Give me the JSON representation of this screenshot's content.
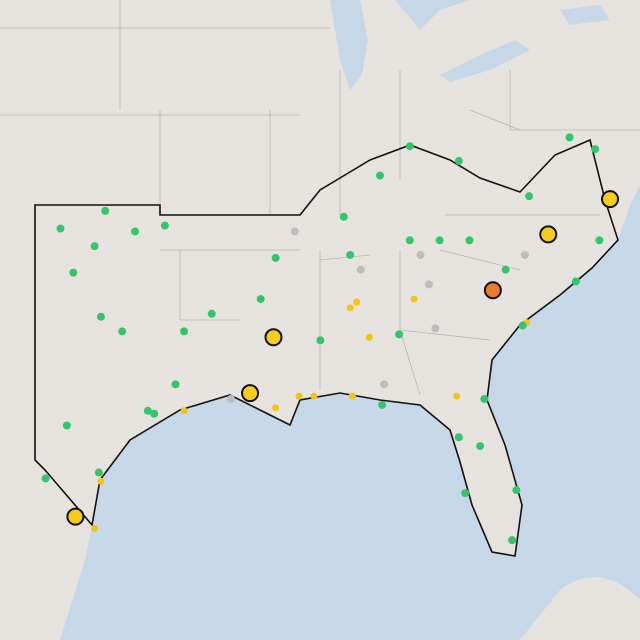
{
  "marker_styles": {
    "green": {
      "color": "#34c56b",
      "radius": 4
    },
    "gray": {
      "color": "#bdbdbd",
      "radius": 4
    },
    "yellow": {
      "color": "#f2c318",
      "radius": 3.5
    },
    "yellow-large": {
      "color": "#f5cc1c",
      "radius": 8
    },
    "orange-large": {
      "color": "#e67e2e",
      "radius": 8
    }
  },
  "points": [
    {
      "lon": -101.8,
      "lat": 35.7,
      "style": "green"
    },
    {
      "lon": -99.7,
      "lat": 36.3,
      "style": "green"
    },
    {
      "lon": -100.2,
      "lat": 35.1,
      "style": "green"
    },
    {
      "lon": -98.3,
      "lat": 35.6,
      "style": "green"
    },
    {
      "lon": -96.9,
      "lat": 35.8,
      "style": "green"
    },
    {
      "lon": -101.2,
      "lat": 34.2,
      "style": "green"
    },
    {
      "lon": -99.9,
      "lat": 32.7,
      "style": "green"
    },
    {
      "lon": -98.9,
      "lat": 32.2,
      "style": "green"
    },
    {
      "lon": -101.5,
      "lat": 29.0,
      "style": "green"
    },
    {
      "lon": -97.7,
      "lat": 29.5,
      "style": "green"
    },
    {
      "lon": -97.4,
      "lat": 29.4,
      "style": "green"
    },
    {
      "lon": -96.0,
      "lat": 32.2,
      "style": "green"
    },
    {
      "lon": -96.4,
      "lat": 30.4,
      "style": "green"
    },
    {
      "lon": -100.0,
      "lat": 27.4,
      "style": "green"
    },
    {
      "lon": -102.5,
      "lat": 27.2,
      "style": "green"
    },
    {
      "lon": -101.1,
      "lat": 25.9,
      "style": "yellow-large"
    },
    {
      "lon": -100.2,
      "lat": 25.5,
      "style": "yellow"
    },
    {
      "lon": -99.9,
      "lat": 27.1,
      "style": "yellow"
    },
    {
      "lon": -96.0,
      "lat": 29.5,
      "style": "yellow"
    },
    {
      "lon": -94.7,
      "lat": 32.8,
      "style": "green"
    },
    {
      "lon": -91.8,
      "lat": 32.0,
      "style": "yellow-large"
    },
    {
      "lon": -92.9,
      "lat": 30.1,
      "style": "yellow-large"
    },
    {
      "lon": -91.7,
      "lat": 29.6,
      "style": "yellow"
    },
    {
      "lon": -90.6,
      "lat": 30.0,
      "style": "yellow"
    },
    {
      "lon": -89.9,
      "lat": 30.0,
      "style": "yellow"
    },
    {
      "lon": -93.8,
      "lat": 29.9,
      "style": "gray"
    },
    {
      "lon": -92.4,
      "lat": 33.3,
      "style": "green"
    },
    {
      "lon": -91.7,
      "lat": 34.7,
      "style": "green"
    },
    {
      "lon": -90.8,
      "lat": 35.6,
      "style": "gray"
    },
    {
      "lon": -89.6,
      "lat": 31.9,
      "style": "green"
    },
    {
      "lon": -88.2,
      "lat": 33.0,
      "style": "yellow"
    },
    {
      "lon": -87.9,
      "lat": 33.2,
      "style": "yellow"
    },
    {
      "lon": -87.3,
      "lat": 32.0,
      "style": "yellow"
    },
    {
      "lon": -88.1,
      "lat": 30.0,
      "style": "yellow"
    },
    {
      "lon": -86.6,
      "lat": 30.4,
      "style": "gray"
    },
    {
      "lon": -86.7,
      "lat": 29.7,
      "style": "green"
    },
    {
      "lon": -88.5,
      "lat": 36.1,
      "style": "green"
    },
    {
      "lon": -86.8,
      "lat": 37.5,
      "style": "green"
    },
    {
      "lon": -85.4,
      "lat": 38.5,
      "style": "green"
    },
    {
      "lon": -83.1,
      "lat": 38.0,
      "style": "green"
    },
    {
      "lon": -85.2,
      "lat": 33.3,
      "style": "yellow"
    },
    {
      "lon": -84.2,
      "lat": 32.3,
      "style": "gray"
    },
    {
      "lon": -84.5,
      "lat": 33.8,
      "style": "gray"
    },
    {
      "lon": -85.9,
      "lat": 32.1,
      "style": "green"
    },
    {
      "lon": -83.2,
      "lat": 30.0,
      "style": "yellow"
    },
    {
      "lon": -81.9,
      "lat": 29.9,
      "style": "green"
    },
    {
      "lon": -83.1,
      "lat": 28.6,
      "style": "green"
    },
    {
      "lon": -82.1,
      "lat": 28.3,
      "style": "green"
    },
    {
      "lon": -82.8,
      "lat": 26.7,
      "style": "green"
    },
    {
      "lon": -80.4,
      "lat": 26.8,
      "style": "green"
    },
    {
      "lon": -80.6,
      "lat": 25.1,
      "style": "green"
    },
    {
      "lon": -81.5,
      "lat": 33.6,
      "style": "orange-large"
    },
    {
      "lon": -79.9,
      "lat": 32.5,
      "style": "yellow"
    },
    {
      "lon": -80.1,
      "lat": 32.4,
      "style": "green"
    },
    {
      "lon": -78.9,
      "lat": 35.5,
      "style": "yellow-large"
    },
    {
      "lon": -80.0,
      "lat": 34.8,
      "style": "gray"
    },
    {
      "lon": -76.0,
      "lat": 36.7,
      "style": "yellow-large"
    },
    {
      "lon": -77.9,
      "lat": 38.8,
      "style": "green"
    },
    {
      "lon": -76.7,
      "lat": 38.4,
      "style": "green"
    },
    {
      "lon": -77.6,
      "lat": 33.9,
      "style": "green"
    },
    {
      "lon": -79.8,
      "lat": 36.8,
      "style": "green"
    },
    {
      "lon": -84.0,
      "lat": 35.3,
      "style": "green"
    },
    {
      "lon": -82.6,
      "lat": 35.3,
      "style": "green"
    },
    {
      "lon": -80.9,
      "lat": 34.3,
      "style": "green"
    },
    {
      "lon": -88.2,
      "lat": 34.8,
      "style": "green"
    },
    {
      "lon": -87.7,
      "lat": 34.3,
      "style": "gray"
    },
    {
      "lon": -76.5,
      "lat": 35.3,
      "style": "green"
    },
    {
      "lon": -85.4,
      "lat": 35.3,
      "style": "green"
    },
    {
      "lon": -84.9,
      "lat": 34.8,
      "style": "gray"
    }
  ]
}
